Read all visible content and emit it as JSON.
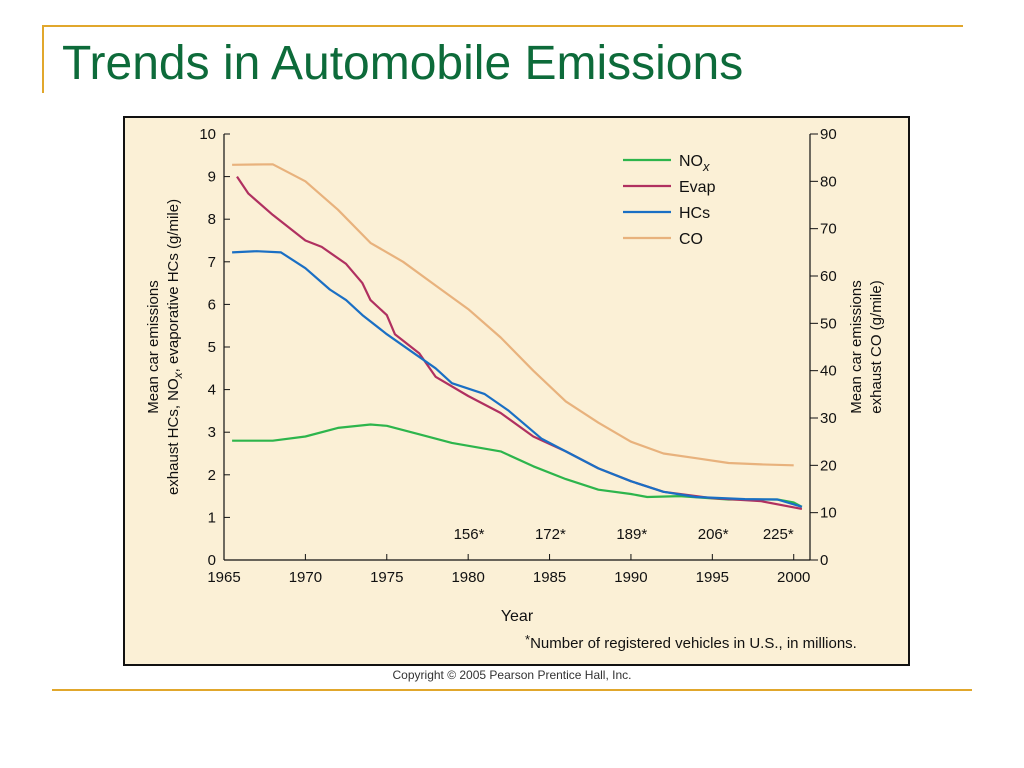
{
  "slide": {
    "title": "Trends in Automobile Emissions",
    "copyright": "Copyright © 2005 Pearson Prentice Hall, Inc.",
    "accent_color": "#e1a72c",
    "title_color": "#0d6b3a"
  },
  "chart_data": {
    "type": "line",
    "background": "#fbf0d6",
    "xlabel": "Year",
    "ylabel_left": [
      "Mean car emissions",
      "exhaust HCs, NO",
      "x",
      ", evaporative HCs (g/mile)"
    ],
    "ylabel_right": [
      "Mean car emissions",
      "exhaust CO (g/mile)"
    ],
    "xlim": [
      1965,
      2001
    ],
    "ylim_left": [
      0,
      10
    ],
    "ylim_right": [
      0,
      90
    ],
    "x_ticks": [
      1965,
      1970,
      1975,
      1980,
      1985,
      1990,
      1995,
      2000
    ],
    "y_ticks_left": [
      0,
      1,
      2,
      3,
      4,
      5,
      6,
      7,
      8,
      9,
      10
    ],
    "y_ticks_right": [
      0,
      10,
      20,
      30,
      40,
      50,
      60,
      70,
      80,
      90
    ],
    "grid": false,
    "legend_position": "top-right",
    "series": [
      {
        "name": "NO",
        "name_sub": "x",
        "color": "#2db54c",
        "axis": "left",
        "points": [
          [
            1965.5,
            2.8
          ],
          [
            1968,
            2.8
          ],
          [
            1970,
            2.9
          ],
          [
            1972,
            3.1
          ],
          [
            1974,
            3.18
          ],
          [
            1975,
            3.15
          ],
          [
            1977,
            2.95
          ],
          [
            1979,
            2.75
          ],
          [
            1982,
            2.55
          ],
          [
            1984,
            2.2
          ],
          [
            1986,
            1.9
          ],
          [
            1988,
            1.65
          ],
          [
            1990,
            1.55
          ],
          [
            1991,
            1.48
          ],
          [
            1993,
            1.5
          ],
          [
            1996,
            1.42
          ],
          [
            1999,
            1.42
          ],
          [
            2000,
            1.35
          ],
          [
            2000.5,
            1.25
          ]
        ]
      },
      {
        "name": "Evap",
        "color": "#b03060",
        "axis": "left",
        "points": [
          [
            1965.8,
            9.0
          ],
          [
            1966.5,
            8.6
          ],
          [
            1968,
            8.1
          ],
          [
            1970,
            7.5
          ],
          [
            1971,
            7.35
          ],
          [
            1972.5,
            6.95
          ],
          [
            1973.5,
            6.5
          ],
          [
            1974,
            6.1
          ],
          [
            1975,
            5.75
          ],
          [
            1975.5,
            5.3
          ],
          [
            1977,
            4.85
          ],
          [
            1978,
            4.3
          ],
          [
            1980,
            3.85
          ],
          [
            1982,
            3.45
          ],
          [
            1984,
            2.9
          ],
          [
            1986,
            2.55
          ],
          [
            1988,
            2.15
          ],
          [
            1990,
            1.85
          ],
          [
            1992,
            1.6
          ],
          [
            1995,
            1.45
          ],
          [
            1998,
            1.38
          ],
          [
            2000.5,
            1.2
          ]
        ]
      },
      {
        "name": "HCs",
        "color": "#1a6fc4",
        "axis": "left",
        "points": [
          [
            1965.5,
            7.22
          ],
          [
            1967,
            7.25
          ],
          [
            1968.5,
            7.22
          ],
          [
            1970,
            6.85
          ],
          [
            1971.5,
            6.35
          ],
          [
            1972.5,
            6.1
          ],
          [
            1973.5,
            5.75
          ],
          [
            1975,
            5.3
          ],
          [
            1976.5,
            4.9
          ],
          [
            1978,
            4.5
          ],
          [
            1979,
            4.15
          ],
          [
            1981,
            3.9
          ],
          [
            1982.5,
            3.5
          ],
          [
            1984.5,
            2.85
          ],
          [
            1986,
            2.55
          ],
          [
            1988,
            2.15
          ],
          [
            1990,
            1.85
          ],
          [
            1992,
            1.6
          ],
          [
            1994,
            1.48
          ],
          [
            1997,
            1.43
          ],
          [
            1999,
            1.42
          ],
          [
            2000.5,
            1.25
          ]
        ]
      },
      {
        "name": "CO",
        "color": "#e8b27d",
        "axis": "right",
        "points": [
          [
            1965.5,
            83.5
          ],
          [
            1968,
            83.6
          ],
          [
            1970,
            80
          ],
          [
            1972,
            74
          ],
          [
            1974,
            67
          ],
          [
            1976,
            63
          ],
          [
            1978,
            58
          ],
          [
            1980,
            53
          ],
          [
            1982,
            47
          ],
          [
            1984,
            40
          ],
          [
            1986,
            33.5
          ],
          [
            1988,
            29
          ],
          [
            1990,
            25
          ],
          [
            1992,
            22.5
          ],
          [
            1994,
            21.5
          ],
          [
            1996,
            20.5
          ],
          [
            1998,
            20.2
          ],
          [
            2000,
            20
          ]
        ]
      }
    ],
    "annotations": [
      {
        "x": 1981,
        "label": "156*"
      },
      {
        "x": 1986,
        "label": "172*"
      },
      {
        "x": 1991,
        "label": "189*"
      },
      {
        "x": 1996,
        "label": "206*"
      },
      {
        "x": 2000,
        "label": "225*"
      }
    ],
    "footnote_star": "*",
    "footnote": "Number of registered vehicles in U.S., in millions."
  }
}
